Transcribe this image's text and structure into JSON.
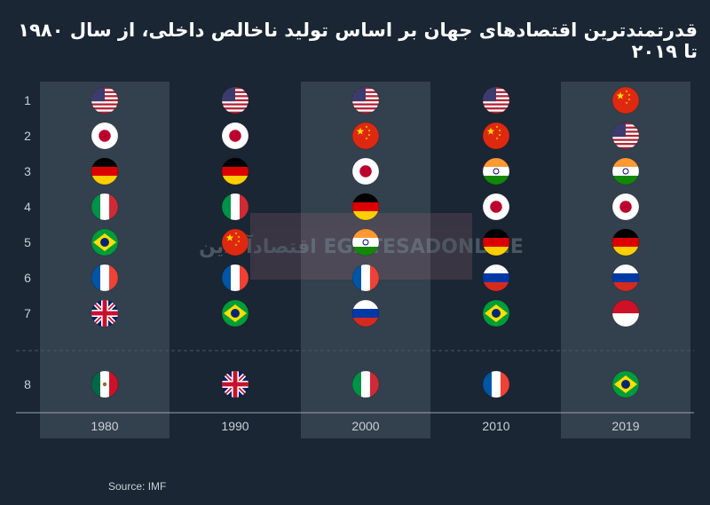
{
  "title": "قدرتمندترین اقتصادهای جهان بر اساس تولید ناخالص داخلی، از سال ۱۹۸۰ تا ۲۰۱۹",
  "source": "Source: IMF",
  "watermark": "اقتصادآنلاین EGHTESADONLINE",
  "colors": {
    "background": "#1a2634",
    "column_band": "#33404e",
    "text": "#c9d0d8"
  },
  "chart_data": {
    "type": "table",
    "title": "قدرتمندترین اقتصادهای جهان بر اساس تولید ناخالص داخلی، از سال ۱۹۸۰ تا ۲۰۱۹",
    "ranks": [
      "1",
      "2",
      "3",
      "4",
      "5",
      "6",
      "7",
      "8"
    ],
    "columns": [
      "1980",
      "1990",
      "2000",
      "2010",
      "2019"
    ],
    "shaded_columns": [
      "1980",
      "2000",
      "2019"
    ],
    "rankings": {
      "1980": [
        "United States",
        "Japan",
        "Germany",
        "Italy",
        "Brazil",
        "France",
        "United Kingdom",
        "Mexico"
      ],
      "1990": [
        "United States",
        "Japan",
        "Germany",
        "Italy",
        "China",
        "France",
        "Brazil",
        "United Kingdom"
      ],
      "2000": [
        "United States",
        "China",
        "Japan",
        "Germany",
        "India",
        "France",
        "Russia",
        "Italy"
      ],
      "2010": [
        "United States",
        "China",
        "India",
        "Japan",
        "Germany",
        "Russia",
        "Brazil",
        "France"
      ],
      "2019": [
        "China",
        "United States",
        "India",
        "Japan",
        "Germany",
        "Russia",
        "Indonesia",
        "Brazil"
      ]
    },
    "flag_icons": {
      "United States": "us-flag-icon",
      "Japan": "japan-flag-icon",
      "Germany": "germany-flag-icon",
      "Italy": "italy-flag-icon",
      "Brazil": "brazil-flag-icon",
      "France": "france-flag-icon",
      "United Kingdom": "uk-flag-icon",
      "Mexico": "mexico-flag-icon",
      "China": "china-flag-icon",
      "India": "india-flag-icon",
      "Russia": "russia-flag-icon",
      "Indonesia": "indonesia-flag-icon"
    },
    "source": "Source: IMF"
  }
}
